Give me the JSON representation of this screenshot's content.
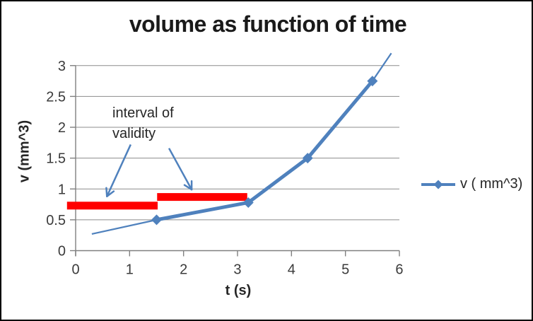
{
  "frame": {
    "background": "#ffffff",
    "border_color": "#000000"
  },
  "chart_data": {
    "type": "line",
    "title": "volume as function of time",
    "xlabel": "t (s)",
    "ylabel": "v (mm^3)",
    "legend_position": "right",
    "grid": "horizontal-only",
    "xlim": [
      0,
      6
    ],
    "ylim": [
      0,
      3
    ],
    "x_ticks": [
      "0",
      "1",
      "2",
      "3",
      "4",
      "5",
      "6"
    ],
    "y_ticks": [
      "0",
      "0.5",
      "1",
      "1.5",
      "2",
      "2.5",
      "3"
    ],
    "x_tick_values": [
      0,
      1,
      2,
      3,
      4,
      5,
      6
    ],
    "y_tick_values": [
      0,
      0.5,
      1,
      1.5,
      2,
      2.5,
      3
    ],
    "series": [
      {
        "name": "v ( mm^3)",
        "x": [
          1.5,
          3.2,
          4.3,
          5.5
        ],
        "y": [
          0.5,
          0.78,
          1.5,
          2.75
        ],
        "color": "#4f81bd",
        "marker": "diamond",
        "line_width": 5
      }
    ],
    "trendline": {
      "x": [
        0.3,
        1.5,
        3.2,
        4.3,
        5.5,
        5.85
      ],
      "y": [
        0.27,
        0.5,
        0.78,
        1.5,
        2.75,
        3.2
      ],
      "color": "#4f81bd",
      "line_width": 2.25
    },
    "interval_bars": [
      {
        "t_start": -0.16,
        "t_end": 1.52,
        "v": 0.73,
        "color": "#ff0000"
      },
      {
        "t_start": 1.51,
        "t_end": 3.18,
        "v": 0.87,
        "color": "#ff0000"
      }
    ],
    "annotation": {
      "text": "interval of\nvalidity",
      "arrow_color": "#4f81bd",
      "arrows": [
        {
          "from_t": 1.02,
          "from_v": 1.72,
          "to_t": 0.58,
          "to_v": 0.88
        },
        {
          "from_t": 1.73,
          "from_v": 1.66,
          "to_t": 2.15,
          "to_v": 0.99
        }
      ]
    },
    "colors": {
      "gridline": "#8c8c8c",
      "axis": "#808080",
      "tick_label": "#3b3b3b"
    }
  }
}
